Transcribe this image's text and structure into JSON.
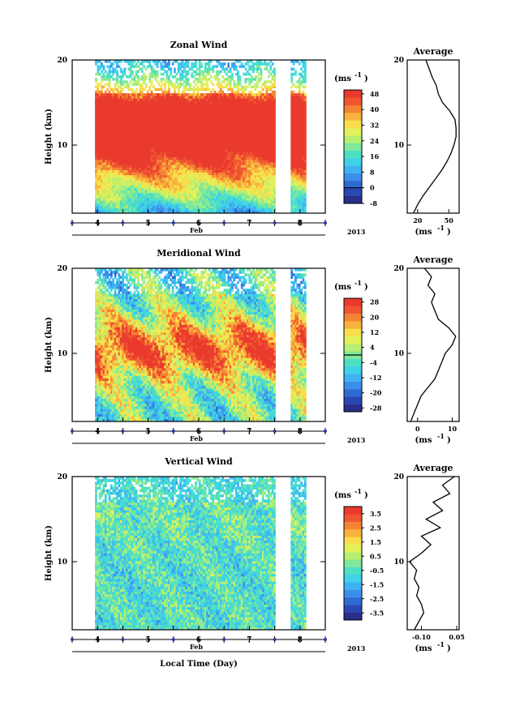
{
  "figure": {
    "xlabel": "Local Time (Day)",
    "month_label": "Feb",
    "year_label": "2013",
    "ylabel": "Height (km)",
    "average_title": "Average",
    "colorbar_unit": "(ms",
    "colorbar_unit_exp": "-1",
    "colorbar_unit_close": ")"
  },
  "chart_data": [
    {
      "type": "heatmap",
      "title": "Zonal Wind",
      "xlabel": "Local Time (Day)",
      "ylabel": "Height (km)",
      "x_range_days": [
        3.5,
        8.5
      ],
      "x_ticks": [
        "4",
        "5",
        "6",
        "7",
        "8"
      ],
      "ylim": [
        2,
        20
      ],
      "y_ticks": [
        "10",
        "20"
      ],
      "gap_days": [
        7.5,
        7.8
      ],
      "colorbar": {
        "min": -8,
        "max": 50,
        "ticks": [
          "48",
          "40",
          "32",
          "24",
          "16",
          "8",
          "0",
          "-8"
        ],
        "zero_line": 0
      },
      "field": {
        "base": 10,
        "jet": 58,
        "jet_center": 12.5,
        "jet_width": 4.5,
        "noise": 6,
        "wave_amp": 4,
        "start": 3.95,
        "end": 8.12
      },
      "profile": {
        "xlim": [
          10,
          60
        ],
        "x_ticks": [
          "20",
          "50"
        ],
        "heights": [
          2,
          3,
          4,
          5,
          6,
          7,
          8,
          9,
          10,
          11,
          12,
          13,
          14,
          15,
          16,
          17,
          18,
          19,
          20
        ],
        "values": [
          16,
          20,
          25,
          31,
          37,
          43,
          48,
          52,
          55,
          57,
          57,
          56,
          51,
          44,
          40,
          38,
          34,
          31,
          28
        ]
      }
    },
    {
      "type": "heatmap",
      "title": "Meridional Wind",
      "xlabel": "Local Time (Day)",
      "ylabel": "Height (km)",
      "x_range_days": [
        3.5,
        8.5
      ],
      "x_ticks": [
        "4",
        "5",
        "6",
        "7",
        "8"
      ],
      "ylim": [
        2,
        20
      ],
      "y_ticks": [
        "10",
        "20"
      ],
      "gap_days": [
        7.5,
        7.8
      ],
      "colorbar": {
        "min": -30,
        "max": 30,
        "ticks": [
          "28",
          "20",
          "12",
          "4",
          "-4",
          "-12",
          "-20",
          "-28"
        ],
        "zero_line": 0
      },
      "field": {
        "base": -2,
        "jet": 26,
        "jet_center": 10.5,
        "jet_width": 3.5,
        "noise": 8,
        "wave_amp": 10,
        "start": 3.95,
        "end": 8.12
      },
      "profile": {
        "xlim": [
          -3,
          12
        ],
        "x_ticks": [
          "0",
          "10"
        ],
        "heights": [
          2,
          3,
          4,
          5,
          6,
          7,
          8,
          9,
          10,
          11,
          12,
          13,
          14,
          15,
          16,
          17,
          18,
          19,
          20
        ],
        "values": [
          -2,
          -1,
          0,
          1,
          3,
          5,
          6,
          7,
          8,
          10,
          11,
          9,
          6,
          5,
          4,
          5,
          3,
          4,
          2
        ]
      }
    },
    {
      "type": "heatmap",
      "title": "Vertical Wind",
      "xlabel": "Local Time (Day)",
      "ylabel": "Height (km)",
      "x_range_days": [
        3.5,
        8.5
      ],
      "x_ticks": [
        "4",
        "5",
        "6",
        "7",
        "8"
      ],
      "ylim": [
        2,
        20
      ],
      "y_ticks": [
        "10",
        "20"
      ],
      "gap_days": [
        7.5,
        7.8
      ],
      "colorbar": {
        "min": -4,
        "max": 4,
        "ticks": [
          "3.5",
          "2.5",
          "1.5",
          "0.5",
          "-0.5",
          "-1.5",
          "-2.5",
          "-3.5"
        ]
      },
      "field": {
        "base": -0.6,
        "jet": 0.3,
        "jet_center": 16,
        "jet_width": 4,
        "noise": 1.1,
        "wave_amp": 0.4,
        "start": 3.95,
        "end": 8.12
      },
      "profile": {
        "xlim": [
          -0.16,
          0.06
        ],
        "x_ticks": [
          "-0.10",
          "0.05"
        ],
        "heights": [
          2,
          3,
          4,
          5,
          6,
          7,
          8,
          9,
          10,
          11,
          12,
          13,
          14,
          15,
          16,
          17,
          18,
          19,
          20
        ],
        "values": [
          -0.13,
          -0.11,
          -0.09,
          -0.1,
          -0.12,
          -0.11,
          -0.13,
          -0.12,
          -0.15,
          -0.1,
          -0.06,
          -0.1,
          -0.02,
          -0.08,
          -0.01,
          -0.05,
          0.02,
          -0.01,
          0.04
        ]
      }
    }
  ]
}
